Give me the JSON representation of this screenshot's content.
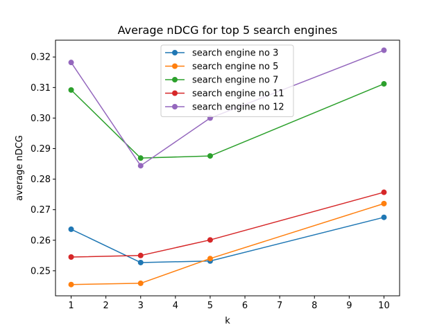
{
  "chart_data": {
    "type": "line",
    "title": "Average nDCG for top 5 search engines",
    "xlabel": "k",
    "ylabel": "average nDCG",
    "x": [
      1,
      3,
      5,
      10
    ],
    "xlim": [
      0.55,
      10.45
    ],
    "ylim": [
      0.2418,
      0.3255
    ],
    "xticks": [
      1,
      2,
      3,
      4,
      5,
      6,
      7,
      8,
      9,
      10
    ],
    "yticks": [
      0.25,
      0.26,
      0.27,
      0.28,
      0.29,
      0.3,
      0.31,
      0.32
    ],
    "ytick_labels": [
      "0.25",
      "0.26",
      "0.27",
      "0.28",
      "0.29",
      "0.30",
      "0.31",
      "0.32"
    ],
    "grid": false,
    "legend_position": "top-center",
    "series": [
      {
        "name": "search engine no 3",
        "color": "#1f77b4",
        "values": [
          0.2636,
          0.2527,
          0.2532,
          0.2675
        ]
      },
      {
        "name": "search engine no 5",
        "color": "#ff7f0e",
        "values": [
          0.2455,
          0.2459,
          0.254,
          0.272
        ]
      },
      {
        "name": "search engine no 7",
        "color": "#2ca02c",
        "values": [
          0.3092,
          0.2869,
          0.2876,
          0.3112
        ]
      },
      {
        "name": "search engine no 11",
        "color": "#d62728",
        "values": [
          0.2545,
          0.255,
          0.2601,
          0.2757
        ]
      },
      {
        "name": "search engine no 12",
        "color": "#9467bd",
        "values": [
          0.3182,
          0.2844,
          0.3,
          0.3222
        ]
      }
    ]
  }
}
